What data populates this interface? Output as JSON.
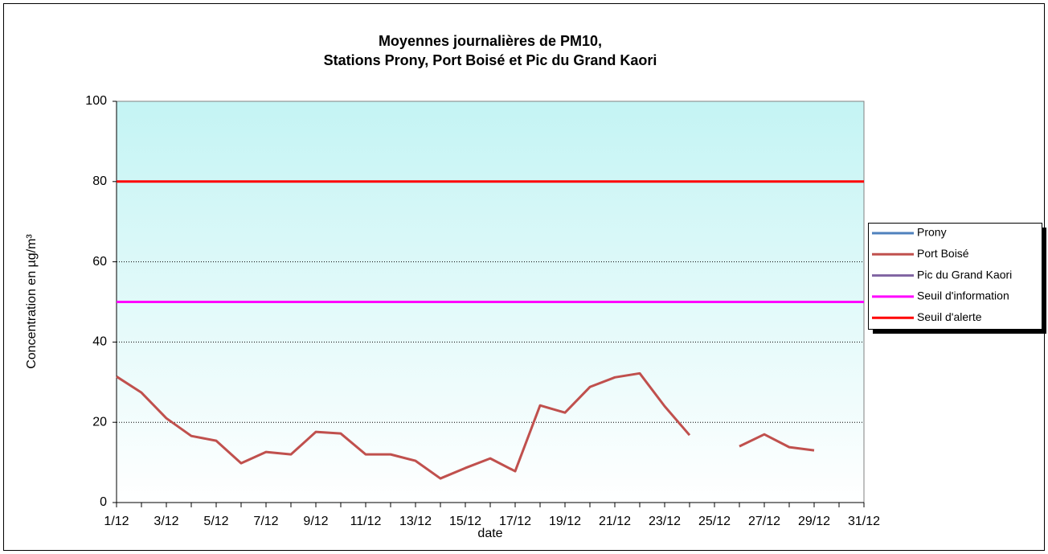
{
  "chart_data": {
    "type": "line",
    "title": [
      "Moyennes journalières de PM10,",
      "Stations Prony, Port Boisé et Pic du Grand Kaori"
    ],
    "x_label": "date",
    "y_label": "Concentration en µg/m³",
    "categories": [
      "1/12",
      null,
      "3/12",
      null,
      "5/12",
      null,
      "7/12",
      null,
      "9/12",
      null,
      "11/12",
      null,
      "13/12",
      null,
      "15/12",
      null,
      "17/12",
      null,
      "19/12",
      null,
      "21/12",
      null,
      "23/12",
      null,
      "25/12",
      null,
      "27/12",
      null,
      "29/12",
      null,
      "31/12"
    ],
    "series": [
      {
        "name": "Prony",
        "color": "#4f81bd",
        "values": [
          null,
          null,
          null,
          null,
          null,
          null,
          null,
          null,
          null,
          null,
          null,
          null,
          null,
          null,
          null,
          null,
          null,
          null,
          null,
          null,
          null,
          null,
          null,
          null,
          null,
          null,
          null,
          null,
          null,
          null,
          null
        ]
      },
      {
        "name": "Port Boisé",
        "color": "#c0504d",
        "values": [
          31.4,
          27.4,
          21,
          16.6,
          15.4,
          9.8,
          12.6,
          12,
          17.6,
          17.2,
          12,
          12,
          10.4,
          6,
          8.6,
          11,
          7.8,
          24.2,
          22.4,
          28.8,
          31.2,
          32.2,
          24,
          16.8,
          null,
          14,
          17,
          13.8,
          13,
          null,
          null
        ]
      },
      {
        "name": "Pic du Grand Kaori",
        "color": "#8064a2",
        "values": [
          null,
          null,
          null,
          null,
          null,
          null,
          null,
          null,
          null,
          null,
          null,
          null,
          null,
          null,
          null,
          null,
          null,
          null,
          null,
          null,
          null,
          null,
          null,
          null,
          null,
          null,
          null,
          null,
          null,
          null,
          null
        ]
      },
      {
        "name": "Seuil d'information",
        "color": "#ff00ff",
        "values": [
          50,
          50,
          50,
          50,
          50,
          50,
          50,
          50,
          50,
          50,
          50,
          50,
          50,
          50,
          50,
          50,
          50,
          50,
          50,
          50,
          50,
          50,
          50,
          50,
          50,
          50,
          50,
          50,
          50,
          50,
          50
        ]
      },
      {
        "name": "Seuil d'alerte",
        "color": "#ff0000",
        "values": [
          80,
          80,
          80,
          80,
          80,
          80,
          80,
          80,
          80,
          80,
          80,
          80,
          80,
          80,
          80,
          80,
          80,
          80,
          80,
          80,
          80,
          80,
          80,
          80,
          80,
          80,
          80,
          80,
          80,
          80,
          80
        ]
      }
    ],
    "ylim": [
      0,
      100
    ],
    "yticks": [
      0,
      20,
      40,
      60,
      80,
      100
    ],
    "grid": true,
    "legend": "right"
  }
}
